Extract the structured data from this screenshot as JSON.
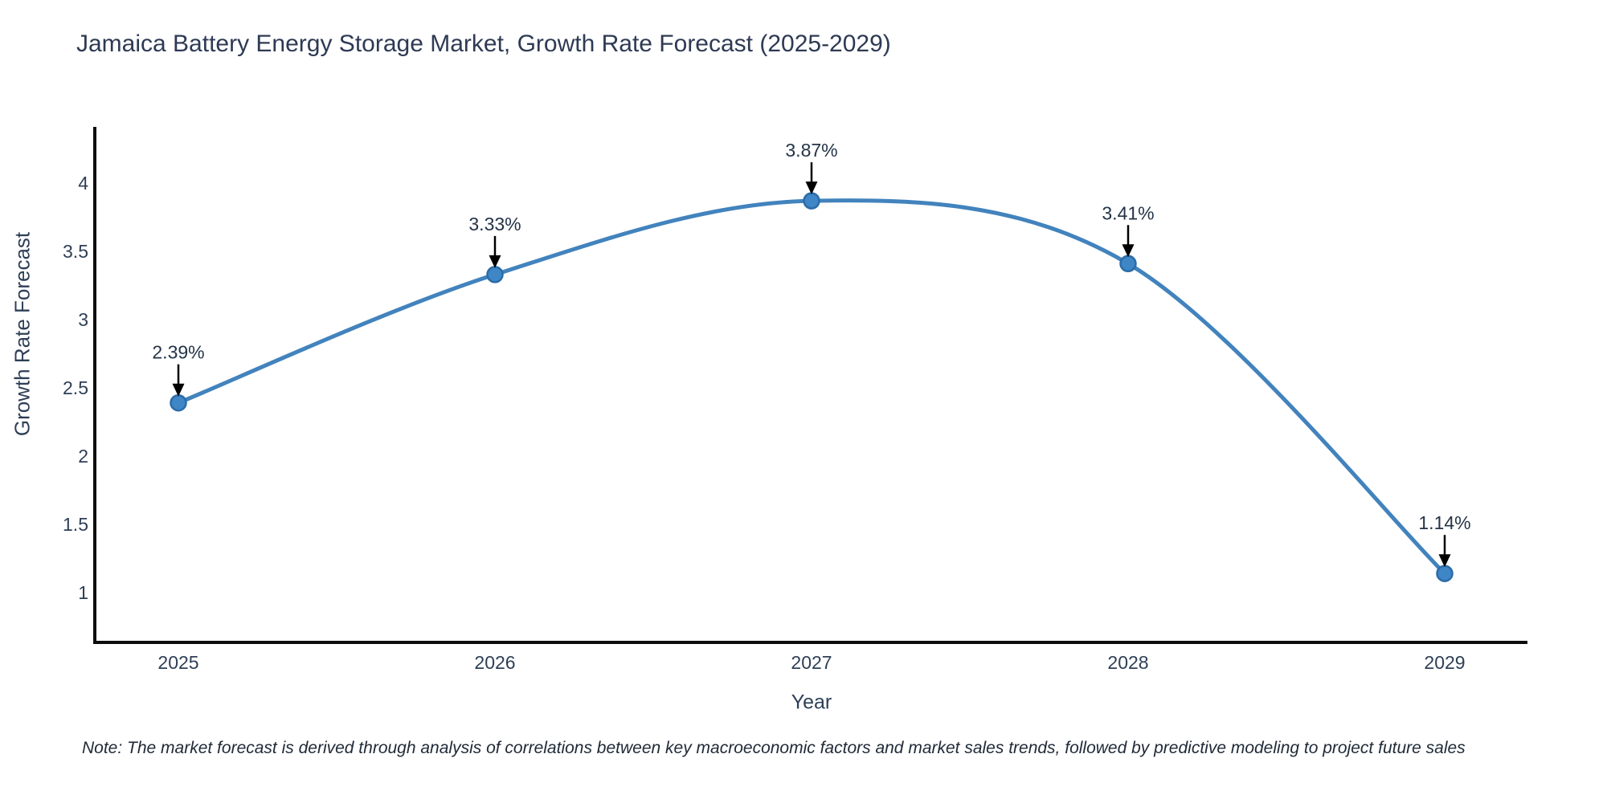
{
  "header": {
    "title": "Jamaica Battery Energy Storage Market, Growth Rate Forecast (2025-2029)"
  },
  "axes": {
    "x_label": "Year",
    "y_label": "Growth Rate Forecast"
  },
  "footer": {
    "note": "Note: The market forecast is derived through analysis of correlations between key macroeconomic factors and market sales trends, followed by predictive modeling to project future sales"
  },
  "chart_data": {
    "type": "line",
    "title": "Jamaica Battery Energy Storage Market, Growth Rate Forecast (2025-2029)",
    "xlabel": "Year",
    "ylabel": "Growth Rate Forecast",
    "x": [
      2025,
      2026,
      2027,
      2028,
      2029
    ],
    "series": [
      {
        "name": "Growth Rate Forecast",
        "values": [
          2.39,
          3.33,
          3.87,
          3.41,
          1.14
        ]
      }
    ],
    "point_labels": [
      "2.39%",
      "3.33%",
      "3.87%",
      "3.41%",
      "1.14%"
    ],
    "x_tick_labels": [
      "2025",
      "2026",
      "2027",
      "2028",
      "2029"
    ],
    "y_ticks": [
      1,
      1.5,
      2,
      2.5,
      3,
      3.5,
      4
    ],
    "y_tick_labels": [
      "1",
      "1.5",
      "2",
      "2.5",
      "3",
      "3.5",
      "4"
    ],
    "ylim": [
      0.64,
      4.4
    ],
    "xlim_pad_years": 0.27,
    "line_shape": "spline",
    "grid": false,
    "legend_position": "none",
    "annotations_have_arrows": true,
    "colors": {
      "line": "#4283bd",
      "marker_fill": "#3f86c7",
      "marker_edge": "#2b6ca8",
      "arrow": "#000000",
      "axis_line": "#0d0d0d",
      "tick_text": "#2e3f56",
      "annotation_text": "#243447",
      "title_text": "#2e3a54",
      "background": "#ffffff"
    }
  }
}
